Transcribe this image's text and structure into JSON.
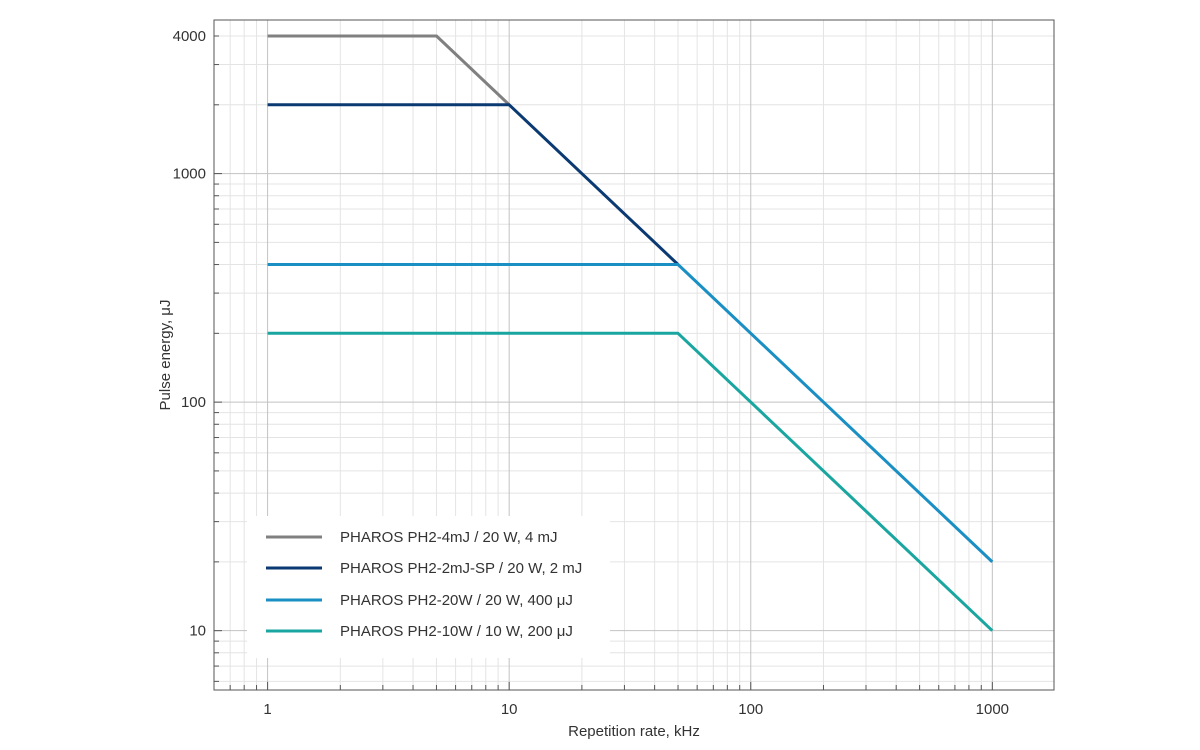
{
  "chart_data": {
    "type": "line",
    "xlabel": "Repetition rate, kHz",
    "ylabel": "Pulse energy, μJ",
    "x_scale": "log",
    "y_scale": "log",
    "xlim": [
      0.6,
      1800
    ],
    "ylim": [
      5.5,
      4700
    ],
    "x_ticks": [
      1,
      10,
      100,
      1000
    ],
    "x_tick_labels": [
      "1",
      "10",
      "100",
      "1000"
    ],
    "y_ticks": [
      10,
      100,
      1000,
      4000
    ],
    "y_tick_labels": [
      "10",
      "100",
      "1000",
      "4000"
    ],
    "grid": true,
    "legend_position": "bottom-left",
    "series": [
      {
        "name": "PHAROS PH2-4mJ / 20 W, 4 mJ",
        "color": "#808080",
        "x": [
          1,
          5,
          10
        ],
        "y": [
          4000,
          4000,
          2000
        ]
      },
      {
        "name": "PHAROS PH2-2mJ-SP / 20 W, 2 mJ",
        "color": "#0b3a73",
        "x": [
          1,
          10,
          50
        ],
        "y": [
          2000,
          2000,
          400
        ]
      },
      {
        "name": "PHAROS PH2-20W / 20 W, 400 μJ",
        "color": "#1a8fc4",
        "x": [
          1,
          50,
          1000
        ],
        "y": [
          400,
          400,
          20
        ]
      },
      {
        "name": "PHAROS PH2-10W / 10 W, 200 μJ",
        "color": "#1aa6a0",
        "x": [
          1,
          50,
          1000
        ],
        "y": [
          200,
          200,
          10
        ]
      }
    ]
  }
}
